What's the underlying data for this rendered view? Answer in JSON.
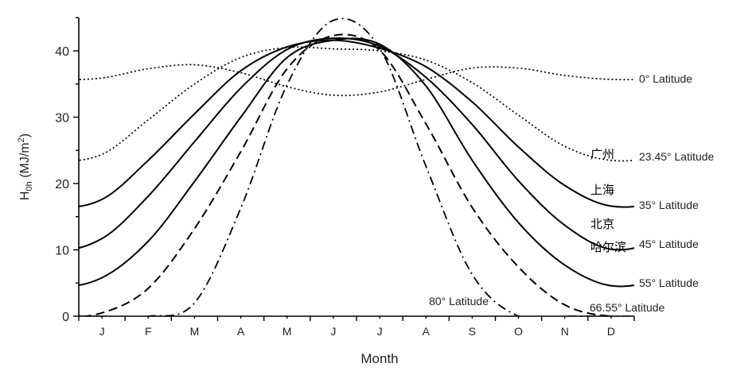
{
  "chart_data": {
    "type": "line",
    "xlabel": "Month",
    "ylabel_main": "H",
    "ylabel_sub": "0h",
    "ylabel_unit": " (MJ/m",
    "ylabel_sup": "2",
    "ylabel_close": ")",
    "ylim": [
      0,
      45
    ],
    "yticks": [
      0,
      10,
      20,
      30,
      40
    ],
    "categories": [
      "J",
      "F",
      "M",
      "A",
      "M",
      "J",
      "J",
      "A",
      "S",
      "O",
      "N",
      "D"
    ],
    "grid": false,
    "series": [
      {
        "name": "0° Latitude",
        "style": "dotted",
        "values": [
          35.9,
          37.3,
          37.9,
          36.7,
          34.6,
          33.3,
          33.8,
          35.7,
          37.4,
          37.4,
          36.3,
          35.7
        ]
      },
      {
        "name": "23.45° Latitude",
        "style": "dotted",
        "values": [
          24.4,
          29.6,
          35.0,
          39.0,
          40.5,
          40.3,
          40.0,
          38.6,
          35.2,
          30.3,
          25.6,
          23.5
        ]
      },
      {
        "name": "35° Latitude",
        "style": "solid",
        "values": [
          17.6,
          23.5,
          30.5,
          37.0,
          40.6,
          41.6,
          40.4,
          37.6,
          32.3,
          25.5,
          19.7,
          16.6
        ]
      },
      {
        "name": "45° Latitude",
        "style": "solid",
        "values": [
          11.7,
          18.1,
          26.3,
          34.4,
          40.2,
          41.9,
          40.7,
          36.0,
          28.9,
          20.4,
          13.7,
          10.1
        ]
      },
      {
        "name": "55° Latitude",
        "style": "solid",
        "values": [
          5.8,
          11.3,
          20.3,
          30.0,
          39.0,
          41.6,
          41.0,
          34.7,
          23.5,
          14.1,
          7.7,
          4.6
        ]
      },
      {
        "name": "66.55° Latitude",
        "style": "dashed",
        "values": [
          0.5,
          4.2,
          13.2,
          24.8,
          37.3,
          42.3,
          40.1,
          29.0,
          16.4,
          7.4,
          1.7,
          0
        ]
      },
      {
        "name": "80° Latitude",
        "style": "dashdot",
        "values": [
          0,
          0,
          2.0,
          16.3,
          34.9,
          44.6,
          40.4,
          22.6,
          6.3,
          0,
          0,
          0
        ]
      }
    ],
    "city_labels": [
      "广州",
      "上海",
      "北京",
      "哈尔滨"
    ]
  }
}
